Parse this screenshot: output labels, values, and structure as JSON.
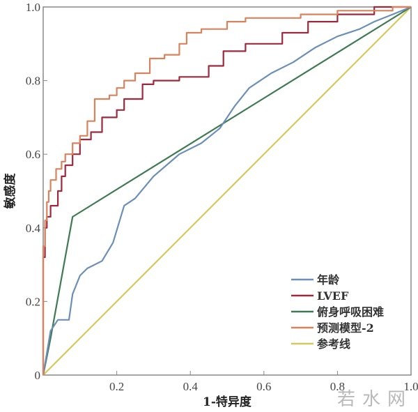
{
  "chart_data": {
    "type": "line",
    "title": "",
    "xlabel": "1-特异度",
    "ylabel": "敏感度",
    "xlim": [
      0,
      1
    ],
    "ylim": [
      0,
      1
    ],
    "x_ticks": [
      "0",
      "0.2",
      "0.4",
      "0.6",
      "0.8",
      "1.0"
    ],
    "y_ticks": [
      "0",
      "0.2",
      "0.4",
      "0.6",
      "0.8",
      "1.0"
    ],
    "grid": false,
    "legend_position": "lower right",
    "series": [
      {
        "name": "年龄",
        "color": "#6b8fb8",
        "points": [
          [
            0,
            0
          ],
          [
            0.02,
            0.12
          ],
          [
            0.04,
            0.15
          ],
          [
            0.07,
            0.15
          ],
          [
            0.08,
            0.22
          ],
          [
            0.1,
            0.27
          ],
          [
            0.12,
            0.29
          ],
          [
            0.16,
            0.31
          ],
          [
            0.19,
            0.36
          ],
          [
            0.22,
            0.46
          ],
          [
            0.25,
            0.48
          ],
          [
            0.3,
            0.54
          ],
          [
            0.37,
            0.6
          ],
          [
            0.43,
            0.63
          ],
          [
            0.48,
            0.67
          ],
          [
            0.52,
            0.73
          ],
          [
            0.56,
            0.78
          ],
          [
            0.62,
            0.82
          ],
          [
            0.68,
            0.85
          ],
          [
            0.74,
            0.89
          ],
          [
            0.8,
            0.92
          ],
          [
            0.86,
            0.94
          ],
          [
            0.9,
            0.96
          ],
          [
            0.95,
            0.98
          ],
          [
            1,
            1
          ]
        ]
      },
      {
        "name": "LVEF",
        "color": "#a0283c",
        "step": true,
        "points": [
          [
            0,
            0
          ],
          [
            0.005,
            0.32
          ],
          [
            0.01,
            0.4
          ],
          [
            0.02,
            0.43
          ],
          [
            0.04,
            0.46
          ],
          [
            0.05,
            0.5
          ],
          [
            0.06,
            0.54
          ],
          [
            0.08,
            0.57
          ],
          [
            0.1,
            0.6
          ],
          [
            0.13,
            0.64
          ],
          [
            0.16,
            0.66
          ],
          [
            0.2,
            0.7
          ],
          [
            0.22,
            0.72
          ],
          [
            0.27,
            0.75
          ],
          [
            0.3,
            0.79
          ],
          [
            0.37,
            0.8
          ],
          [
            0.45,
            0.81
          ],
          [
            0.49,
            0.84
          ],
          [
            0.55,
            0.88
          ],
          [
            0.65,
            0.9
          ],
          [
            0.72,
            0.93
          ],
          [
            0.8,
            0.96
          ],
          [
            0.9,
            0.98
          ],
          [
            1,
            1
          ]
        ]
      },
      {
        "name": "俯身呼吸困难",
        "color": "#3e7a52",
        "points": [
          [
            0,
            0
          ],
          [
            0.02,
            0.1
          ],
          [
            0.08,
            0.43
          ],
          [
            1,
            1
          ]
        ]
      },
      {
        "name": "预测模型-2",
        "color": "#d9825b",
        "step": true,
        "points": [
          [
            0,
            0
          ],
          [
            0.005,
            0.35
          ],
          [
            0.01,
            0.42
          ],
          [
            0.015,
            0.47
          ],
          [
            0.02,
            0.5
          ],
          [
            0.035,
            0.53
          ],
          [
            0.05,
            0.56
          ],
          [
            0.06,
            0.58
          ],
          [
            0.08,
            0.6
          ],
          [
            0.1,
            0.63
          ],
          [
            0.12,
            0.65
          ],
          [
            0.14,
            0.69
          ],
          [
            0.14,
            0.74
          ],
          [
            0.18,
            0.75
          ],
          [
            0.2,
            0.76
          ],
          [
            0.22,
            0.78
          ],
          [
            0.25,
            0.8
          ],
          [
            0.29,
            0.82
          ],
          [
            0.33,
            0.86
          ],
          [
            0.37,
            0.87
          ],
          [
            0.39,
            0.9
          ],
          [
            0.43,
            0.93
          ],
          [
            0.5,
            0.94
          ],
          [
            0.55,
            0.96
          ],
          [
            0.7,
            0.97
          ],
          [
            0.8,
            0.98
          ],
          [
            0.95,
            0.99
          ],
          [
            1,
            1
          ]
        ]
      },
      {
        "name": "参考线",
        "color": "#d4c85a",
        "points": [
          [
            0,
            0
          ],
          [
            1,
            1
          ]
        ]
      }
    ]
  },
  "watermark": "若水网"
}
